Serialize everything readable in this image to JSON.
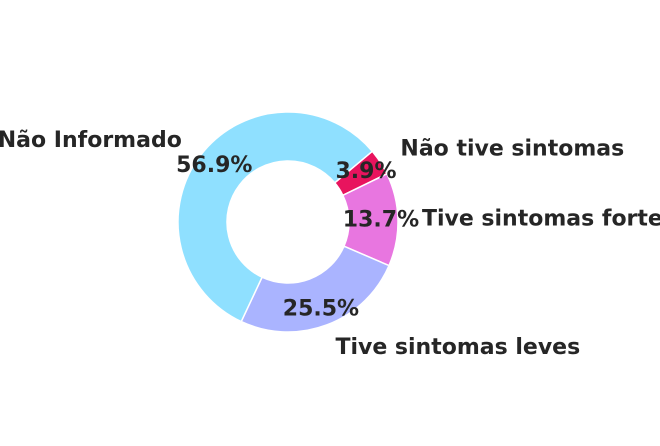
{
  "chart_data": {
    "type": "pie",
    "title": "",
    "donut": true,
    "start_angle_deg": 40,
    "direction": "clockwise",
    "slices": [
      {
        "label": "Não tive sintomas",
        "value": 3.9,
        "pct_label": "3.9%",
        "color": "#e8145e"
      },
      {
        "label": "Tive sintomas fortes",
        "value": 13.7,
        "pct_label": "13.7%",
        "color": "#e876e0"
      },
      {
        "label": "Tive sintomas leves",
        "value": 25.5,
        "pct_label": "25.5%",
        "color": "#aab4ff"
      },
      {
        "label": "Não Informado",
        "value": 56.9,
        "pct_label": "56.9%",
        "color": "#8fe0ff"
      }
    ]
  }
}
